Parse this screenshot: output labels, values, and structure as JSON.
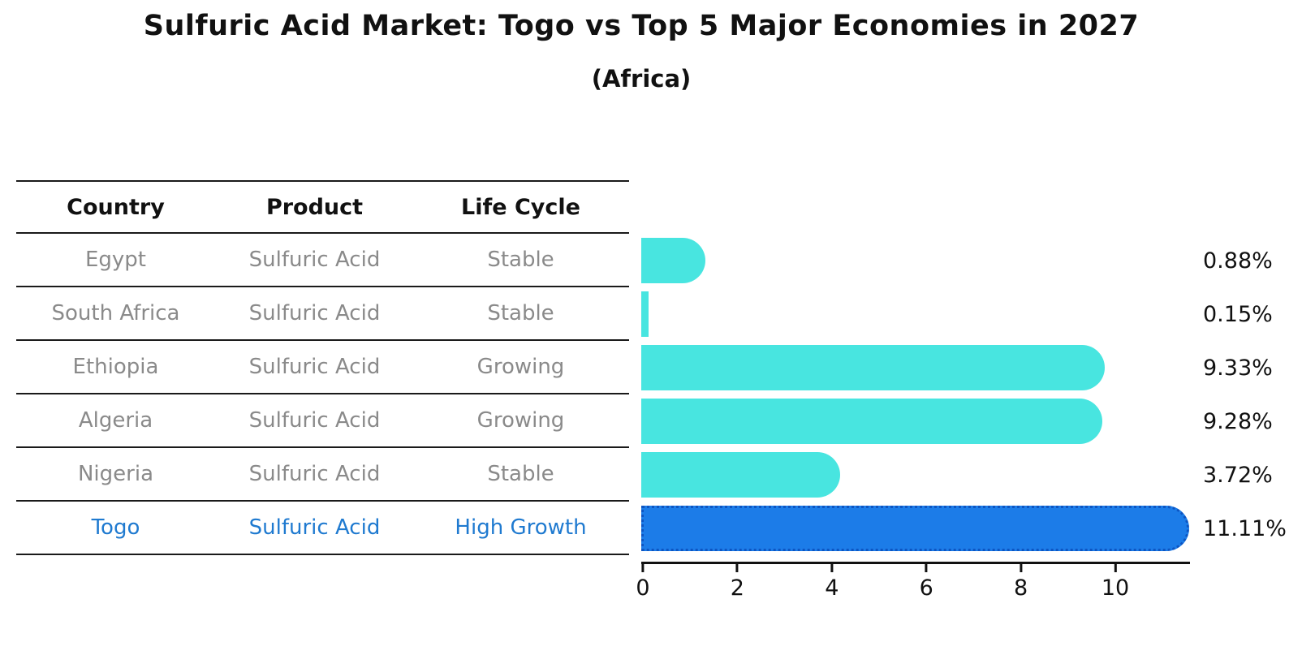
{
  "title": "Sulfuric Acid Market: Togo vs Top 5 Major Economies in 2027",
  "subtitle": "(Africa)",
  "table": {
    "headers": [
      "Country",
      "Product",
      "Life Cycle"
    ],
    "rows": [
      {
        "country": "Egypt",
        "product": "Sulfuric Acid",
        "life_cycle": "Stable",
        "highlight": false
      },
      {
        "country": "South Africa",
        "product": "Sulfuric Acid",
        "life_cycle": "Stable",
        "highlight": false
      },
      {
        "country": "Ethiopia",
        "product": "Sulfuric Acid",
        "life_cycle": "Growing",
        "highlight": false
      },
      {
        "country": "Algeria",
        "product": "Sulfuric Acid",
        "life_cycle": "Growing",
        "highlight": false
      },
      {
        "country": "Nigeria",
        "product": "Sulfuric Acid",
        "life_cycle": "Stable",
        "highlight": false
      },
      {
        "country": "Togo",
        "product": "Sulfuric Acid",
        "life_cycle": "High Growth",
        "highlight": true
      }
    ]
  },
  "chart_data": {
    "type": "bar",
    "orientation": "horizontal",
    "title": "Sulfuric Acid Market: Togo vs Top 5 Major Economies in 2027",
    "subtitle": "(Africa)",
    "categories": [
      "Egypt",
      "South Africa",
      "Ethiopia",
      "Algeria",
      "Nigeria",
      "Togo"
    ],
    "values": [
      0.88,
      0.15,
      9.33,
      9.28,
      3.72,
      11.11
    ],
    "value_labels": [
      "0.88%",
      "0.15%",
      "9.33%",
      "9.28%",
      "3.72%",
      "11.11%"
    ],
    "x_ticks": [
      0,
      2,
      4,
      6,
      8,
      10
    ],
    "xlim": [
      0,
      11.6
    ],
    "grid": false,
    "legend": false,
    "bar_color": "#48e5e0",
    "highlight_color": "#1c7ce8",
    "highlight_border_color": "#0d55c2",
    "highlight_text_color": "#1f7ad0",
    "highlight_index": 5
  }
}
